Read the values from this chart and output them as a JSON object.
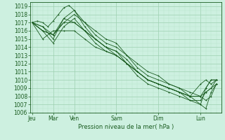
{
  "bg_color": "#cdf0e0",
  "grid_color_major": "#9dcfb0",
  "grid_color_minor": "#b8e4c8",
  "line_color": "#1a5c20",
  "ylabel_text": "Pression niveau de la mer( hPa )",
  "ylim": [
    1006,
    1019.5
  ],
  "yticks": [
    1006,
    1007,
    1008,
    1009,
    1010,
    1011,
    1012,
    1013,
    1014,
    1015,
    1016,
    1017,
    1018,
    1019
  ],
  "x_day_labels": [
    "Jeu",
    "Mar",
    "Ven",
    "Sam",
    "Dim",
    "Lun"
  ],
  "x_day_positions": [
    0,
    24,
    48,
    96,
    144,
    192
  ],
  "xlim": [
    -2,
    216
  ],
  "lines": [
    [
      0,
      1017,
      6,
      1017.2,
      12,
      1017,
      18,
      1016.5,
      24,
      1017.2,
      30,
      1018,
      36,
      1018.8,
      42,
      1019.1,
      48,
      1018.5,
      60,
      1017,
      72,
      1016,
      84,
      1015,
      96,
      1014.5,
      108,
      1013,
      120,
      1012,
      132,
      1011,
      144,
      1010.5,
      156,
      1009.5,
      168,
      1009,
      180,
      1008,
      192,
      1009.5,
      198,
      1010,
      204,
      1009.5,
      210,
      1010
    ],
    [
      0,
      1017,
      12,
      1016,
      24,
      1015.5,
      36,
      1017,
      48,
      1018,
      60,
      1017,
      72,
      1015.5,
      84,
      1014.5,
      96,
      1014,
      108,
      1013,
      120,
      1011.5,
      132,
      1010.5,
      144,
      1010,
      156,
      1009.5,
      168,
      1009,
      180,
      1008.5,
      192,
      1008,
      198,
      1007.5,
      204,
      1008,
      210,
      1009.5
    ],
    [
      0,
      1017,
      12,
      1016.5,
      24,
      1015,
      36,
      1017.5,
      48,
      1018.5,
      60,
      1016.5,
      72,
      1015,
      84,
      1014,
      96,
      1013.5,
      108,
      1012.5,
      120,
      1011,
      132,
      1010,
      144,
      1009.5,
      156,
      1009,
      168,
      1008.5,
      180,
      1008,
      192,
      1007,
      198,
      1006.5,
      204,
      1008.5,
      210,
      1009.5
    ],
    [
      0,
      1017,
      12,
      1016,
      24,
      1014.5,
      36,
      1016.5,
      48,
      1017.5,
      60,
      1016,
      72,
      1014.5,
      84,
      1013.5,
      96,
      1013,
      108,
      1012,
      120,
      1010.5,
      132,
      1009.5,
      144,
      1009,
      156,
      1008.5,
      168,
      1008,
      180,
      1007.5,
      192,
      1007.5,
      198,
      1008.5,
      204,
      1009,
      210,
      1009.5
    ],
    [
      0,
      1017,
      12,
      1016.5,
      24,
      1015.5,
      36,
      1017.5,
      48,
      1017,
      60,
      1016,
      72,
      1015,
      84,
      1014,
      96,
      1013,
      108,
      1012,
      120,
      1011,
      132,
      1010,
      144,
      1009.5,
      156,
      1009,
      168,
      1008.5,
      180,
      1008,
      192,
      1008,
      198,
      1009,
      204,
      1010,
      210,
      1010
    ],
    [
      0,
      1017,
      12,
      1015,
      24,
      1016,
      36,
      1016,
      48,
      1016,
      60,
      1015,
      72,
      1014,
      84,
      1013.5,
      96,
      1013,
      108,
      1012,
      120,
      1011,
      132,
      1010,
      144,
      1009.5,
      156,
      1009,
      168,
      1008.5,
      180,
      1008,
      192,
      1008,
      198,
      1008.5,
      204,
      1009,
      210,
      1010
    ],
    [
      0,
      1017,
      12,
      1016,
      24,
      1015.5,
      36,
      1017,
      48,
      1017,
      60,
      1016,
      72,
      1015,
      84,
      1014,
      96,
      1013.5,
      108,
      1012,
      120,
      1011,
      132,
      1010,
      144,
      1009.5,
      156,
      1009,
      168,
      1008.5,
      180,
      1007.5,
      192,
      1007,
      198,
      1009,
      204,
      1010,
      210,
      1010
    ]
  ]
}
